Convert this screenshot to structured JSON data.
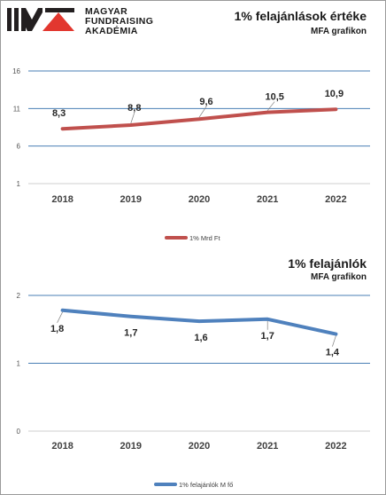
{
  "logo": {
    "lines": [
      "MAGYAR",
      "FUNDRAISING",
      "AKADÉMIA"
    ],
    "colors": {
      "dark": "#231f20",
      "accent": "#e2372f"
    }
  },
  "chart_data": [
    {
      "type": "line",
      "title": "1% felajánlások értéke",
      "subtitle": "MFA grafikon",
      "categories": [
        "2018",
        "2019",
        "2020",
        "2021",
        "2022"
      ],
      "series": [
        {
          "name": "1% Mrd Ft",
          "values": [
            8.3,
            8.8,
            9.6,
            10.5,
            10.9
          ],
          "color": "#c0504d"
        }
      ],
      "data_labels": [
        "8,3",
        "8,8",
        "9,6",
        "10,5",
        "10,9"
      ],
      "yticks": [
        "1",
        "6",
        "11",
        "16"
      ],
      "ylim": [
        1,
        16
      ],
      "grid": true,
      "legend": "bottom"
    },
    {
      "type": "line",
      "title": "1% felajánlók",
      "subtitle": "MFA grafikon",
      "categories": [
        "2018",
        "2019",
        "2020",
        "2021",
        "2022"
      ],
      "series": [
        {
          "name": "1% felajánlók M fő",
          "values": [
            1.78,
            1.69,
            1.62,
            1.65,
            1.43
          ],
          "color": "#4f81bd"
        }
      ],
      "data_labels": [
        "1,8",
        "1,7",
        "1,6",
        "1,7",
        "1,4"
      ],
      "yticks": [
        "0",
        "1",
        "2"
      ],
      "ylim": [
        0,
        2
      ],
      "grid": true,
      "legend": "bottom"
    }
  ]
}
